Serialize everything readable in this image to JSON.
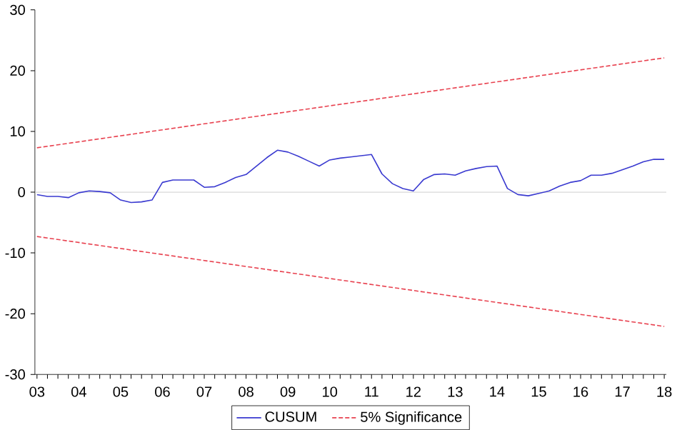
{
  "chart_data": {
    "type": "line",
    "categories": [
      "03",
      null,
      null,
      null,
      "04",
      null,
      null,
      null,
      "05",
      null,
      null,
      null,
      "06",
      null,
      null,
      null,
      "07",
      null,
      null,
      null,
      "08",
      null,
      null,
      null,
      "09",
      null,
      null,
      null,
      "10",
      null,
      null,
      null,
      "11",
      null,
      null,
      null,
      "12",
      null,
      null,
      null,
      "13",
      null,
      null,
      null,
      "14",
      null,
      null,
      null,
      "15",
      null,
      null,
      null,
      "16",
      null,
      null,
      null,
      "17",
      null,
      null,
      null,
      "18"
    ],
    "series": [
      {
        "name": "CUSUM",
        "color": "#3a3ad0",
        "line_style": "solid",
        "values": [
          -0.4,
          -0.7,
          -0.7,
          -0.9,
          -0.1,
          0.2,
          0.1,
          -0.1,
          -1.3,
          -1.7,
          -1.6,
          -1.3,
          1.6,
          2.0,
          2.0,
          2.0,
          0.8,
          0.9,
          1.6,
          2.4,
          2.9,
          4.3,
          5.7,
          6.9,
          6.6,
          5.9,
          5.1,
          4.3,
          5.3,
          5.6,
          5.8,
          6.0,
          6.2,
          3.0,
          1.4,
          0.6,
          0.2,
          2.1,
          2.9,
          3.0,
          2.8,
          3.5,
          3.9,
          4.2,
          4.3,
          0.6,
          -0.4,
          -0.6,
          -0.2,
          0.2,
          1.0,
          1.6,
          1.9,
          2.8,
          2.8,
          3.1,
          3.7,
          4.3,
          5.0,
          5.4,
          5.4
        ]
      },
      {
        "name": "5% Significance",
        "color": "#e8414f",
        "line_style": "dashed",
        "x": [
          "03",
          "18"
        ],
        "values": [
          7.3,
          22.1
        ]
      },
      {
        "color": "#e8414f",
        "line_style": "dashed",
        "x": [
          "03",
          "18"
        ],
        "values": [
          -7.3,
          -22.1
        ]
      }
    ],
    "ylim": [
      -30,
      30
    ],
    "yticks": [
      -30,
      -20,
      -10,
      0,
      10,
      20,
      30
    ],
    "ref_lines": [
      {
        "axis": "y",
        "value": 0,
        "color": "#c8c8c8"
      }
    ],
    "marker": "none",
    "legend": "bottom"
  }
}
